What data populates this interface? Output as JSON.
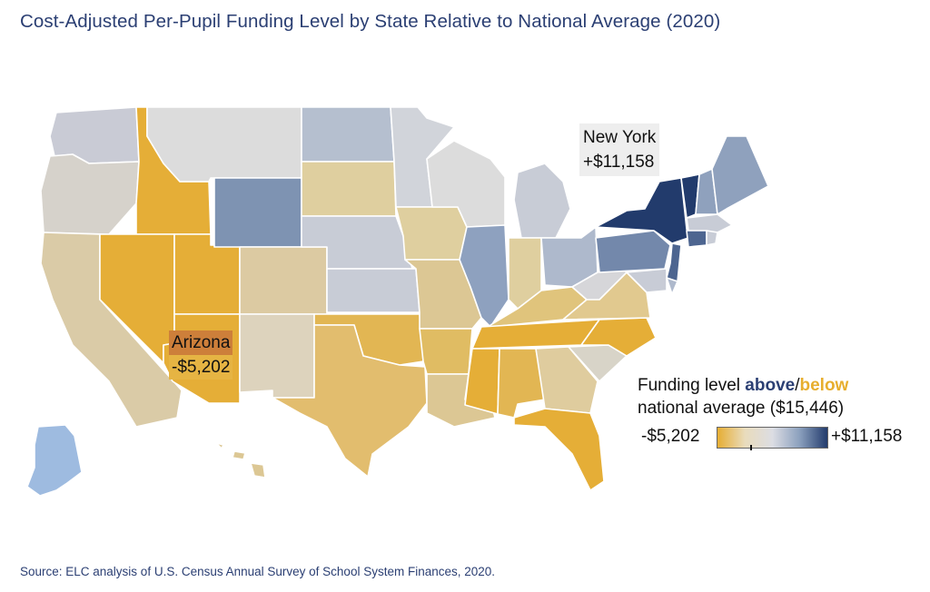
{
  "title": "Cost-Adjusted Per-Pupil Funding Level by State Relative to National Average (2020)",
  "source": "Source: ELC analysis of U.S. Census Annual Survey of School System Finances, 2020.",
  "legend": {
    "line1_prefix": "Funding level ",
    "above": "above",
    "slash": "/",
    "below": "below",
    "line2": "national average ($15,446)",
    "min_label": "-$5,202",
    "max_label": "+$11,158",
    "gradient_colors": [
      "#e6ad33",
      "#e9dcbc",
      "#dcdde3",
      "#8a9fbd",
      "#223b6c"
    ]
  },
  "callouts": {
    "new_york": {
      "name": "New York",
      "value": "+$11,158"
    },
    "arizona": {
      "name": "Arizona",
      "value": "-$5,202"
    }
  },
  "palette": {
    "above_high": "#223b6c",
    "above_mid": "#7e93b2",
    "above_low": "#b7c1d1",
    "near_avg": "#d6d6d9",
    "below_low": "#dcc99e",
    "below_mid": "#dfba6a",
    "below_high": "#e5ae37"
  },
  "states": [
    {
      "id": "WA",
      "color": "#c9cbd5"
    },
    {
      "id": "OR",
      "color": "#d6d2cb"
    },
    {
      "id": "CA",
      "color": "#dacba7"
    },
    {
      "id": "ID",
      "color": "#e5ae37"
    },
    {
      "id": "NV",
      "color": "#e5ae37"
    },
    {
      "id": "UT",
      "color": "#e5ae37"
    },
    {
      "id": "AZ",
      "color": "#e5ae37"
    },
    {
      "id": "MT",
      "color": "#dcdcdc"
    },
    {
      "id": "WY",
      "color": "#7e93b2"
    },
    {
      "id": "CO",
      "color": "#dccaa2"
    },
    {
      "id": "NM",
      "color": "#ddd3bd"
    },
    {
      "id": "ND",
      "color": "#b5bfcf"
    },
    {
      "id": "SD",
      "color": "#dfcf9f"
    },
    {
      "id": "NE",
      "color": "#c8ccd6"
    },
    {
      "id": "KS",
      "color": "#c8ccd6"
    },
    {
      "id": "OK",
      "color": "#e2b653"
    },
    {
      "id": "TX",
      "color": "#e2bd6e"
    },
    {
      "id": "MN",
      "color": "#d1d4da"
    },
    {
      "id": "IA",
      "color": "#dfcf9f"
    },
    {
      "id": "MO",
      "color": "#dcc794"
    },
    {
      "id": "AR",
      "color": "#e0bc63"
    },
    {
      "id": "LA",
      "color": "#dcc794"
    },
    {
      "id": "WI",
      "color": "#dcdcdc"
    },
    {
      "id": "IL",
      "color": "#8ea1bf"
    },
    {
      "id": "MI",
      "color": "#c8ccd6"
    },
    {
      "id": "IN",
      "color": "#dfcf9f"
    },
    {
      "id": "OH",
      "color": "#aeb9cc"
    },
    {
      "id": "KY",
      "color": "#e0c47c"
    },
    {
      "id": "TN",
      "color": "#e5ae37"
    },
    {
      "id": "MS",
      "color": "#e5ae37"
    },
    {
      "id": "AL",
      "color": "#e2b653"
    },
    {
      "id": "GA",
      "color": "#dfcc9e"
    },
    {
      "id": "FL",
      "color": "#e5ae37"
    },
    {
      "id": "SC",
      "color": "#d8d4c8"
    },
    {
      "id": "NC",
      "color": "#e5ae37"
    },
    {
      "id": "VA",
      "color": "#e1c98f"
    },
    {
      "id": "WV",
      "color": "#d6d6d9"
    },
    {
      "id": "PA",
      "color": "#7388ab"
    },
    {
      "id": "NY",
      "color": "#223b6c"
    },
    {
      "id": "VT",
      "color": "#223b6c"
    },
    {
      "id": "NH",
      "color": "#8fa1bd"
    },
    {
      "id": "ME",
      "color": "#8fa1bd"
    },
    {
      "id": "MA",
      "color": "#c8ccd6"
    },
    {
      "id": "CT",
      "color": "#4d6590"
    },
    {
      "id": "RI",
      "color": "#c8ccd6"
    },
    {
      "id": "NJ",
      "color": "#4d6590"
    },
    {
      "id": "DE",
      "color": "#aeb9cc"
    },
    {
      "id": "MD",
      "color": "#c8ccd6"
    },
    {
      "id": "AK",
      "color": "#9ebbe0"
    },
    {
      "id": "HI",
      "color": "#dcc794"
    }
  ]
}
